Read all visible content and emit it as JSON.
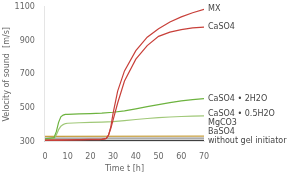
{
  "chart_data": {
    "type": "line",
    "xlabel": "Time t [h]",
    "ylabel": "Velocity of sound  [m/s]",
    "xlim": [
      0,
      70
    ],
    "ylim": [
      300,
      1100
    ],
    "xticks": [
      0,
      10,
      20,
      30,
      40,
      50,
      60,
      70
    ],
    "yticks": [
      300,
      500,
      700,
      900,
      1100
    ],
    "grid": false,
    "series": [
      {
        "name": "MX",
        "color": "#c8403a",
        "x": [
          0,
          5,
          10,
          15,
          20,
          25,
          27,
          28,
          29,
          30,
          32,
          35,
          40,
          45,
          50,
          55,
          60,
          65,
          70
        ],
        "values": [
          310,
          311,
          312,
          313,
          314,
          316,
          320,
          340,
          390,
          470,
          600,
          720,
          840,
          920,
          970,
          1010,
          1040,
          1065,
          1085
        ]
      },
      {
        "name": "CaSO4",
        "color": "#c8403a",
        "x": [
          0,
          5,
          10,
          15,
          20,
          24,
          26,
          27,
          28,
          29,
          30,
          32,
          35,
          40,
          45,
          50,
          55,
          60,
          65,
          70
        ],
        "values": [
          308,
          309,
          310,
          311,
          312,
          313,
          315,
          320,
          340,
          380,
          430,
          530,
          660,
          790,
          870,
          925,
          950,
          965,
          975,
          980
        ]
      },
      {
        "name": "CaSO4 • 2H2O",
        "color": "#6db33f",
        "x": [
          0,
          4,
          5,
          6,
          7,
          8,
          9,
          10,
          15,
          20,
          25,
          30,
          35,
          40,
          45,
          50,
          55,
          60,
          65,
          70
        ],
        "values": [
          318,
          325,
          360,
          415,
          448,
          458,
          462,
          463,
          465,
          467,
          470,
          475,
          483,
          495,
          508,
          520,
          532,
          542,
          550,
          556
        ]
      },
      {
        "name": "CaSO4 • 0.5H2O",
        "color": "#a0c878",
        "x": [
          0,
          4,
          5,
          6,
          7,
          8,
          9,
          10,
          15,
          20,
          25,
          30,
          35,
          40,
          45,
          50,
          55,
          60,
          65,
          70
        ],
        "values": [
          314,
          318,
          340,
          372,
          392,
          402,
          408,
          410,
          413,
          415,
          417,
          420,
          426,
          432,
          438,
          443,
          447,
          450,
          452,
          454
        ]
      },
      {
        "name": "MgCO3",
        "color": "#c8a040",
        "x": [
          0,
          70
        ],
        "values": [
          332,
          334
        ]
      },
      {
        "name": "BaSO4",
        "color": "#909090",
        "x": [
          0,
          70
        ],
        "values": [
          322,
          322
        ]
      },
      {
        "name": "without gel initiator",
        "color": "#404040",
        "x": [
          0,
          70
        ],
        "values": [
          308,
          308
        ]
      }
    ]
  }
}
